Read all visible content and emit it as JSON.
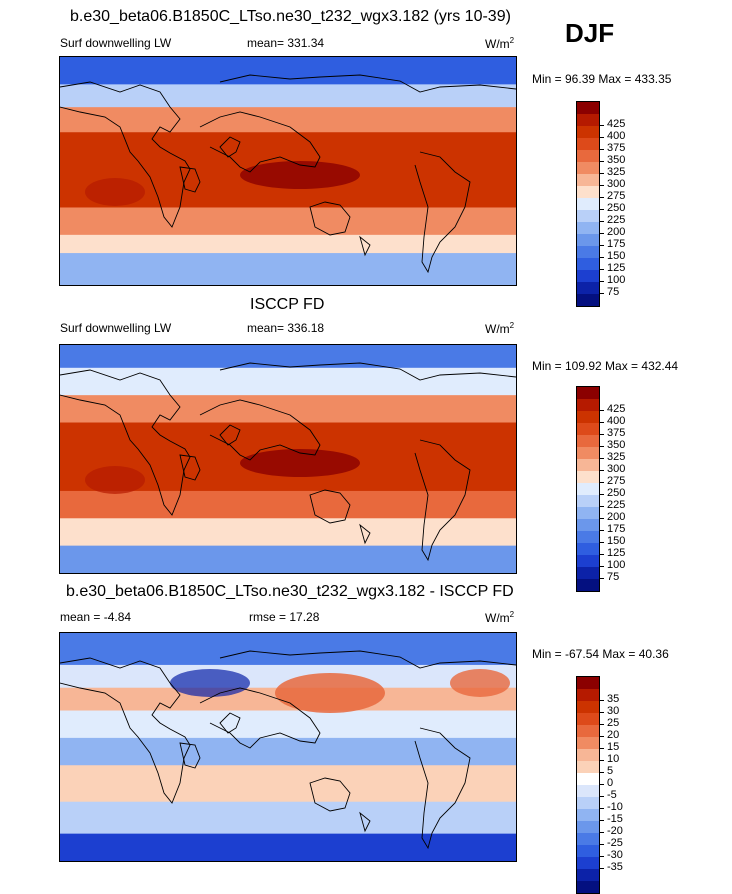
{
  "djf_label": "DJF",
  "panels": [
    {
      "title": "b.e30_beta06.B1850C_LTso.ne30_t232_wgx3.182 (yrs 10-39)",
      "left_label": "Surf downwelling LW",
      "center_label": "mean= 331.34",
      "units_base": "W/m",
      "units_sup": "2",
      "minmax": "Min =  96.39 Max = 433.35",
      "colorbar": {
        "colors": [
          "#8b0000",
          "#b51a00",
          "#cc3300",
          "#dd4a1a",
          "#e8693d",
          "#f08b62",
          "#f7b696",
          "#fde0cc",
          "#e0ecfd",
          "#b9d0f8",
          "#90b4f2",
          "#6b97eb",
          "#4a7ae6",
          "#2f5ee0",
          "#1c3fd0",
          "#0c22a8",
          "#041080"
        ],
        "labels": [
          "425",
          "400",
          "375",
          "350",
          "325",
          "300",
          "275",
          "250",
          "225",
          "200",
          "175",
          "150",
          "125",
          "100",
          "75"
        ]
      }
    },
    {
      "title": "ISCCP FD",
      "left_label": "Surf downwelling LW",
      "center_label": "mean= 336.18",
      "units_base": "W/m",
      "units_sup": "2",
      "minmax": "Min = 109.92 Max = 432.44",
      "colorbar": {
        "colors": [
          "#8b0000",
          "#b51a00",
          "#cc3300",
          "#dd4a1a",
          "#e8693d",
          "#f08b62",
          "#f7b696",
          "#fde0cc",
          "#e0ecfd",
          "#b9d0f8",
          "#90b4f2",
          "#6b97eb",
          "#4a7ae6",
          "#2f5ee0",
          "#1c3fd0",
          "#0c22a8",
          "#041080"
        ],
        "labels": [
          "425",
          "400",
          "375",
          "350",
          "325",
          "300",
          "275",
          "250",
          "225",
          "200",
          "175",
          "150",
          "125",
          "100",
          "75"
        ]
      }
    },
    {
      "title": "b.e30_beta06.B1850C_LTso.ne30_t232_wgx3.182 - ISCCP FD",
      "left_label": "mean =  -4.84",
      "center_label": "rmse =  17.28",
      "units_base": "W/m",
      "units_sup": "2",
      "minmax": "Min = -67.54 Max =  40.36",
      "colorbar": {
        "colors": [
          "#8b0000",
          "#b51a00",
          "#cc3300",
          "#dd4a1a",
          "#e8693d",
          "#f08b62",
          "#f7b696",
          "#fbd2b8",
          "#ffffff",
          "#dbe6fb",
          "#b9d0f8",
          "#90b4f2",
          "#6b97eb",
          "#4a7ae6",
          "#2f5ee0",
          "#1c3fd0",
          "#0c22a8",
          "#041080"
        ],
        "labels": [
          "35",
          "30",
          "25",
          "20",
          "15",
          "10",
          "5",
          "0",
          "-5",
          "-10",
          "-15",
          "-20",
          "-25",
          "-30",
          "-35"
        ]
      }
    }
  ]
}
